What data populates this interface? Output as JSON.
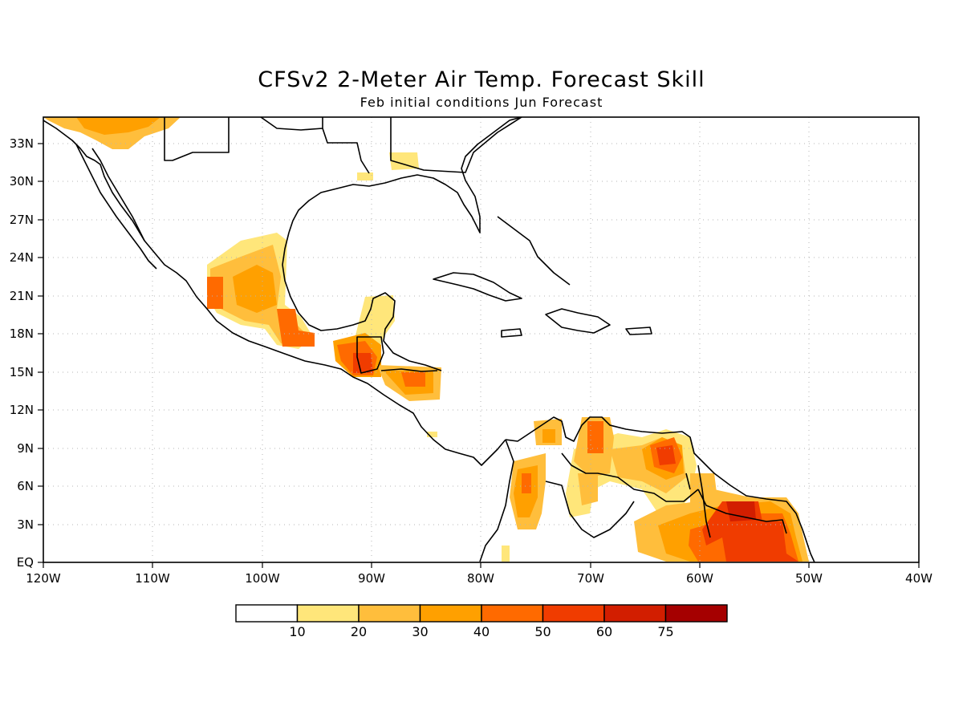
{
  "title": "CFSv2 2-Meter Air Temp. Forecast Skill",
  "subtitle": "Feb initial conditions  Jun Forecast",
  "lon_labels": [
    "120W",
    "110W",
    "100W",
    "90W",
    "80W",
    "70W",
    "60W",
    "50W",
    "40W"
  ],
  "lat_labels": [
    "EQ",
    "3N",
    "6N",
    "9N",
    "12N",
    "15N",
    "18N",
    "21N",
    "24N",
    "27N",
    "30N",
    "33N"
  ],
  "colorbar": {
    "labels": [
      "10",
      "20",
      "30",
      "40",
      "50",
      "60",
      "75"
    ],
    "colors": [
      "#ffffff",
      "#ffe67a",
      "#ffbe3c",
      "#ffa000",
      "#ff6a00",
      "#f03c00",
      "#d21e00",
      "#a50000"
    ]
  }
}
